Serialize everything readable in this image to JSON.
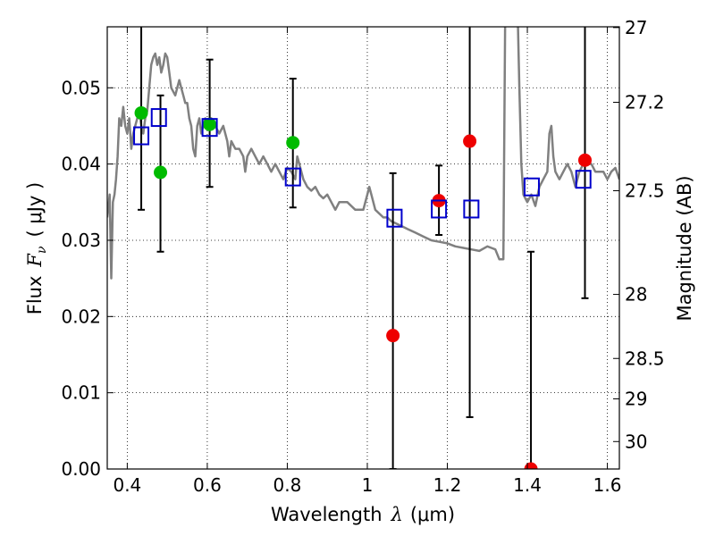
{
  "chart_data": {
    "type": "scatter",
    "xlabel_text": "Wavelength",
    "xlabel_symbol": "λ",
    "xlabel_unit": "(μm)",
    "ylabel_text": "Flux",
    "ylabel_symbol": "F",
    "ylabel_symbol_sub": "ν",
    "ylabel_unit": "( μJy )",
    "y2label": "Magnitude (AB)",
    "xlim": [
      0.35,
      1.63
    ],
    "ylim": [
      0.0,
      0.058
    ],
    "grid": true,
    "x_ticks": [
      0.4,
      0.6,
      0.8,
      1.0,
      1.2,
      1.4,
      1.6
    ],
    "x_tick_labels": [
      "0.4",
      "0.6",
      "0.8",
      "1",
      "1.2",
      "1.4",
      "1.6"
    ],
    "y_ticks": [
      0.0,
      0.01,
      0.02,
      0.03,
      0.04,
      0.05
    ],
    "y_tick_labels": [
      "0.00",
      "0.01",
      "0.02",
      "0.03",
      "0.04",
      "0.05"
    ],
    "y2_ticks": [
      {
        "label": "27",
        "flux": 0.0579
      },
      {
        "label": "27.2",
        "flux": 0.0481
      },
      {
        "label": "27.5",
        "flux": 0.0365
      },
      {
        "label": "28",
        "flux": 0.0229
      },
      {
        "label": "28.5",
        "flux": 0.0145
      },
      {
        "label": "29",
        "flux": 0.0092
      },
      {
        "label": "30",
        "flux": 0.0036
      }
    ],
    "series": [
      {
        "kind": "green_detections",
        "color": "#00bb00",
        "points": [
          {
            "x": 0.435,
            "y": 0.0467
          },
          {
            "x": 0.483,
            "y": 0.0389
          },
          {
            "x": 0.606,
            "y": 0.0452
          },
          {
            "x": 0.814,
            "y": 0.0428
          }
        ]
      },
      {
        "kind": "red_detections",
        "color": "#ee0000",
        "points": [
          {
            "x": 1.064,
            "y": 0.0175
          },
          {
            "x": 1.179,
            "y": 0.0352
          },
          {
            "x": 1.256,
            "y": 0.043
          },
          {
            "x": 1.409,
            "y": 0.0
          },
          {
            "x": 1.544,
            "y": 0.0405
          }
        ]
      },
      {
        "kind": "model_photometry",
        "color": "#0000cc",
        "points": [
          {
            "x": 0.435,
            "y": 0.0437
          },
          {
            "x": 0.479,
            "y": 0.0461
          },
          {
            "x": 0.606,
            "y": 0.0448
          },
          {
            "x": 0.814,
            "y": 0.0383
          },
          {
            "x": 1.068,
            "y": 0.0329
          },
          {
            "x": 1.179,
            "y": 0.0341
          },
          {
            "x": 1.26,
            "y": 0.0341
          },
          {
            "x": 1.411,
            "y": 0.037
          },
          {
            "x": 1.54,
            "y": 0.038
          }
        ]
      }
    ],
    "error_bars": [
      {
        "x": 0.435,
        "y_low": 0.034,
        "y_high": 0.058,
        "capped": false
      },
      {
        "x": 0.483,
        "y_low": 0.0285,
        "y_high": 0.049,
        "capped": true
      },
      {
        "x": 0.606,
        "y_low": 0.037,
        "y_high": 0.0537,
        "capped": true
      },
      {
        "x": 0.814,
        "y_low": 0.0343,
        "y_high": 0.0512,
        "capped": true
      },
      {
        "x": 1.064,
        "y_low": 0.0,
        "y_high": 0.0388,
        "capped": true
      },
      {
        "x": 1.179,
        "y_low": 0.0307,
        "y_high": 0.0398,
        "capped": true
      },
      {
        "x": 1.256,
        "y_low": 0.0068,
        "y_high": 0.058,
        "capped": false
      },
      {
        "x": 1.409,
        "y_low": 0.0,
        "y_high": 0.0285,
        "capped": true
      },
      {
        "x": 1.544,
        "y_low": 0.0224,
        "y_high": 0.058,
        "capped": false
      }
    ],
    "spectrum": {
      "color": "#808080",
      "points": [
        [
          0.35,
          0.033
        ],
        [
          0.356,
          0.036
        ],
        [
          0.36,
          0.025
        ],
        [
          0.364,
          0.035
        ],
        [
          0.368,
          0.036
        ],
        [
          0.372,
          0.038
        ],
        [
          0.376,
          0.041
        ],
        [
          0.38,
          0.046
        ],
        [
          0.385,
          0.045
        ],
        [
          0.39,
          0.0475
        ],
        [
          0.395,
          0.045
        ],
        [
          0.4,
          0.044
        ],
        [
          0.405,
          0.046
        ],
        [
          0.41,
          0.042
        ],
        [
          0.415,
          0.044
        ],
        [
          0.42,
          0.045
        ],
        [
          0.425,
          0.046
        ],
        [
          0.43,
          0.047
        ],
        [
          0.435,
          0.045
        ],
        [
          0.44,
          0.044
        ],
        [
          0.445,
          0.046
        ],
        [
          0.45,
          0.047
        ],
        [
          0.455,
          0.05
        ],
        [
          0.46,
          0.053
        ],
        [
          0.465,
          0.054
        ],
        [
          0.47,
          0.0545
        ],
        [
          0.475,
          0.053
        ],
        [
          0.48,
          0.054
        ],
        [
          0.485,
          0.052
        ],
        [
          0.49,
          0.053
        ],
        [
          0.495,
          0.0545
        ],
        [
          0.5,
          0.054
        ],
        [
          0.505,
          0.052
        ],
        [
          0.51,
          0.05
        ],
        [
          0.52,
          0.049
        ],
        [
          0.525,
          0.05
        ],
        [
          0.53,
          0.051
        ],
        [
          0.535,
          0.05
        ],
        [
          0.54,
          0.049
        ],
        [
          0.545,
          0.048
        ],
        [
          0.55,
          0.048
        ],
        [
          0.555,
          0.046
        ],
        [
          0.56,
          0.045
        ],
        [
          0.565,
          0.042
        ],
        [
          0.57,
          0.041
        ],
        [
          0.575,
          0.045
        ],
        [
          0.58,
          0.046
        ],
        [
          0.585,
          0.044
        ],
        [
          0.59,
          0.045
        ],
        [
          0.595,
          0.046
        ],
        [
          0.6,
          0.045
        ],
        [
          0.61,
          0.046
        ],
        [
          0.62,
          0.045
        ],
        [
          0.63,
          0.044
        ],
        [
          0.64,
          0.045
        ],
        [
          0.65,
          0.043
        ],
        [
          0.655,
          0.041
        ],
        [
          0.66,
          0.043
        ],
        [
          0.67,
          0.042
        ],
        [
          0.68,
          0.042
        ],
        [
          0.69,
          0.041
        ],
        [
          0.695,
          0.039
        ],
        [
          0.7,
          0.041
        ],
        [
          0.71,
          0.042
        ],
        [
          0.72,
          0.041
        ],
        [
          0.73,
          0.04
        ],
        [
          0.74,
          0.041
        ],
        [
          0.75,
          0.04
        ],
        [
          0.76,
          0.039
        ],
        [
          0.77,
          0.04
        ],
        [
          0.78,
          0.039
        ],
        [
          0.79,
          0.038
        ],
        [
          0.8,
          0.0395
        ],
        [
          0.81,
          0.039
        ],
        [
          0.82,
          0.038
        ],
        [
          0.825,
          0.041
        ],
        [
          0.83,
          0.04
        ],
        [
          0.84,
          0.038
        ],
        [
          0.85,
          0.037
        ],
        [
          0.86,
          0.0365
        ],
        [
          0.87,
          0.037
        ],
        [
          0.88,
          0.036
        ],
        [
          0.89,
          0.0355
        ],
        [
          0.9,
          0.036
        ],
        [
          0.91,
          0.035
        ],
        [
          0.92,
          0.034
        ],
        [
          0.93,
          0.035
        ],
        [
          0.94,
          0.035
        ],
        [
          0.95,
          0.035
        ],
        [
          0.96,
          0.0345
        ],
        [
          0.97,
          0.034
        ],
        [
          0.98,
          0.034
        ],
        [
          0.99,
          0.034
        ],
        [
          1.0,
          0.036
        ],
        [
          1.005,
          0.037
        ],
        [
          1.01,
          0.036
        ],
        [
          1.02,
          0.034
        ],
        [
          1.03,
          0.0335
        ],
        [
          1.04,
          0.033
        ],
        [
          1.05,
          0.033
        ],
        [
          1.06,
          0.0325
        ],
        [
          1.08,
          0.032
        ],
        [
          1.1,
          0.0315
        ],
        [
          1.12,
          0.031
        ],
        [
          1.14,
          0.0305
        ],
        [
          1.16,
          0.03
        ],
        [
          1.18,
          0.0298
        ],
        [
          1.2,
          0.0296
        ],
        [
          1.22,
          0.0292
        ],
        [
          1.24,
          0.029
        ],
        [
          1.26,
          0.0288
        ],
        [
          1.28,
          0.0286
        ],
        [
          1.3,
          0.0292
        ],
        [
          1.31,
          0.029
        ],
        [
          1.32,
          0.0288
        ],
        [
          1.33,
          0.0275
        ],
        [
          1.335,
          0.0275
        ],
        [
          1.34,
          0.0275
        ],
        [
          1.345,
          0.062
        ],
        [
          1.36,
          0.062
        ],
        [
          1.375,
          0.062
        ],
        [
          1.38,
          0.05
        ],
        [
          1.385,
          0.04
        ],
        [
          1.39,
          0.036
        ],
        [
          1.4,
          0.035
        ],
        [
          1.41,
          0.036
        ],
        [
          1.42,
          0.0345
        ],
        [
          1.43,
          0.037
        ],
        [
          1.44,
          0.038
        ],
        [
          1.45,
          0.039
        ],
        [
          1.455,
          0.044
        ],
        [
          1.46,
          0.045
        ],
        [
          1.465,
          0.041
        ],
        [
          1.47,
          0.039
        ],
        [
          1.48,
          0.038
        ],
        [
          1.49,
          0.039
        ],
        [
          1.5,
          0.04
        ],
        [
          1.51,
          0.039
        ],
        [
          1.52,
          0.037
        ],
        [
          1.53,
          0.039
        ],
        [
          1.54,
          0.04
        ],
        [
          1.55,
          0.04
        ],
        [
          1.56,
          0.04
        ],
        [
          1.57,
          0.039
        ],
        [
          1.58,
          0.039
        ],
        [
          1.59,
          0.039
        ],
        [
          1.6,
          0.038
        ],
        [
          1.61,
          0.039
        ],
        [
          1.62,
          0.0395
        ],
        [
          1.63,
          0.038
        ]
      ]
    }
  }
}
